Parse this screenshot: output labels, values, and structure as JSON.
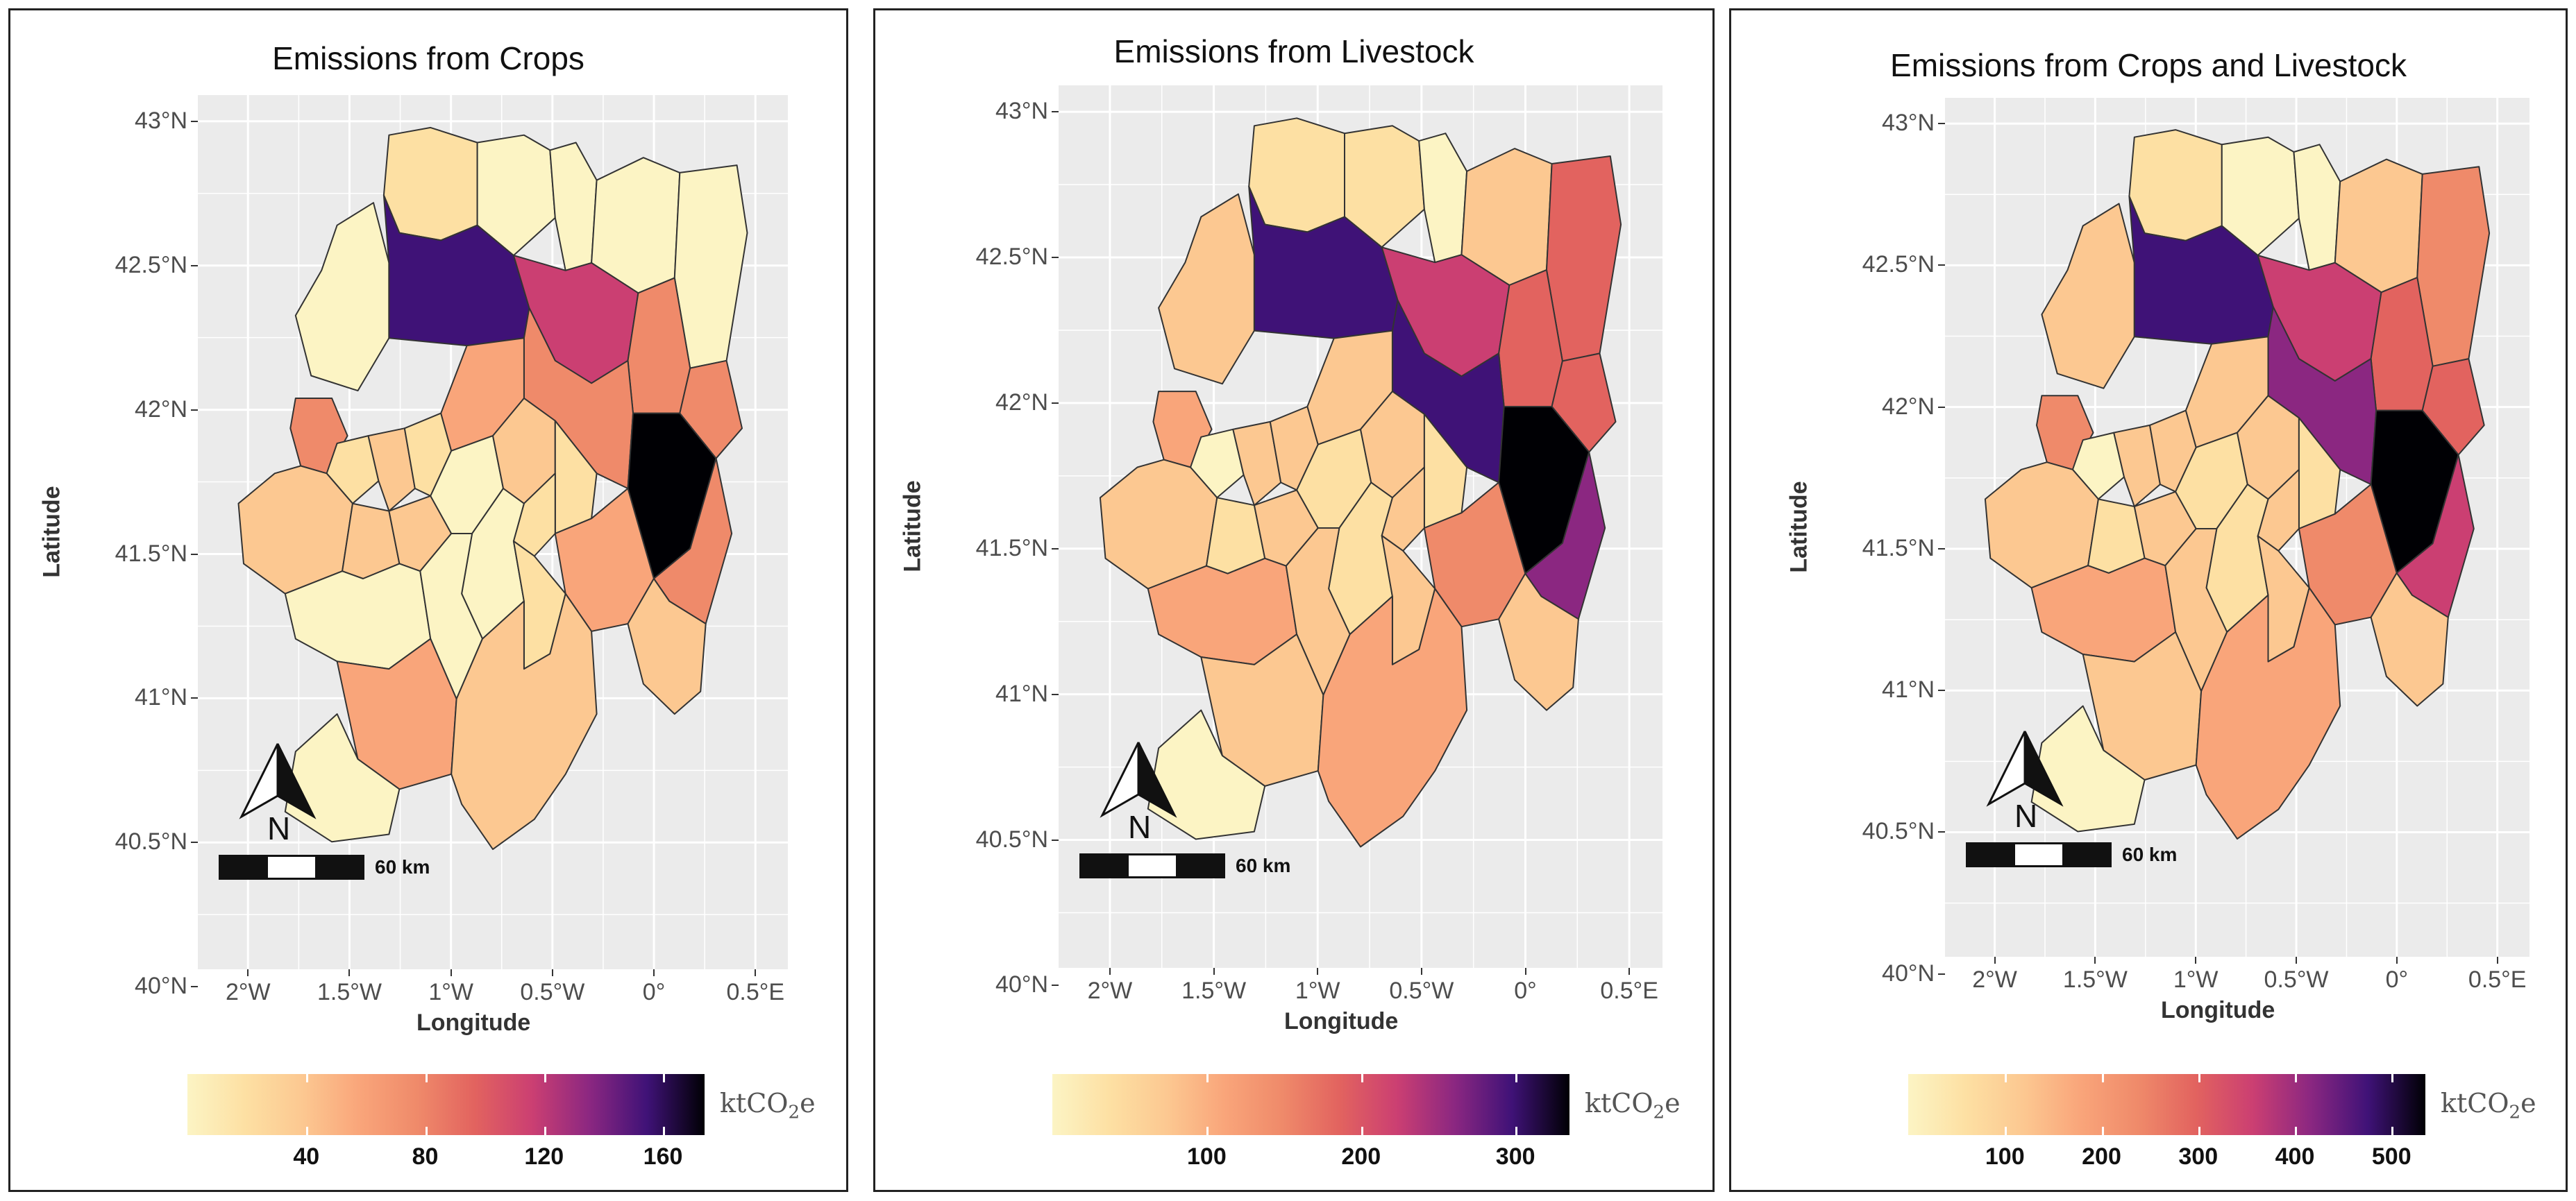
{
  "panels": [
    {
      "title": "Emissions from Crops",
      "y_axis_title": "Latitude",
      "x_axis_title": "Longitude",
      "y_ticks": [
        "43°N",
        "42.5°N",
        "42°N",
        "41.5°N",
        "41°N",
        "40.5°N",
        "40°N"
      ],
      "x_ticks": [
        "2°W",
        "1.5°W",
        "1°W",
        "0.5°W",
        "0°",
        "0.5°E"
      ],
      "north_label": "N",
      "scale_label": "60 km",
      "legend": {
        "unit": "ktCO",
        "unit_sub": "2",
        "unit_tail": "e",
        "ticks": [
          "40",
          "80",
          "120",
          "160"
        ]
      }
    },
    {
      "title": "Emissions from Livestock",
      "y_axis_title": "Latitude",
      "x_axis_title": "Longitude",
      "y_ticks": [
        "43°N",
        "42.5°N",
        "42°N",
        "41.5°N",
        "41°N",
        "40.5°N",
        "40°N"
      ],
      "x_ticks": [
        "2°W",
        "1.5°W",
        "1°W",
        "0.5°W",
        "0°",
        "0.5°E"
      ],
      "north_label": "N",
      "scale_label": "60 km",
      "legend": {
        "unit": "ktCO",
        "unit_sub": "2",
        "unit_tail": "e",
        "ticks": [
          "100",
          "200",
          "300"
        ]
      }
    },
    {
      "title": "Emissions from Crops and Livestock",
      "y_axis_title": "Latitude",
      "x_axis_title": "Longitude",
      "y_ticks": [
        "43°N",
        "42.5°N",
        "42°N",
        "41.5°N",
        "41°N",
        "40.5°N",
        "40°N"
      ],
      "x_ticks": [
        "2°W",
        "1.5°W",
        "1°W",
        "0.5°W",
        "0°",
        "0.5°E"
      ],
      "north_label": "N",
      "scale_label": "60 km",
      "legend": {
        "unit": "ktCO",
        "unit_sub": "2",
        "unit_tail": "e",
        "ticks": [
          "100",
          "200",
          "300",
          "400",
          "500"
        ]
      }
    }
  ],
  "colors": {
    "c1": "#fcf4c4",
    "c2": "#fde0a3",
    "c3": "#fcc891",
    "c4": "#f9a57a",
    "c5": "#ef8a6a",
    "c6": "#e2635f",
    "c7": "#cb3f72",
    "c8": "#8b2781",
    "c9": "#3f1277",
    "c10": "#000004",
    "background": "#ebebeb",
    "border": "#333333"
  },
  "region_classes": [
    [
      "c2",
      "c1",
      "c1",
      "c1",
      "c1",
      "c1",
      "c9",
      "c7",
      "c5",
      "c5",
      "c5",
      "c10",
      "c5",
      "c5",
      "c2",
      "c3",
      "c2",
      "c4",
      "c3",
      "c3",
      "c3",
      "c1",
      "c3",
      "c2",
      "c2",
      "c4",
      "c3",
      "c1",
      "c2",
      "c1",
      "c1",
      "c4",
      "c3",
      "c1"
    ],
    [
      "c2",
      "c2",
      "c1",
      "c3",
      "c6",
      "c3",
      "c9",
      "c7",
      "c6",
      "c6",
      "c9",
      "c10",
      "c8",
      "c4",
      "c1",
      "c3",
      "c3",
      "c3",
      "c3",
      "c2",
      "c3",
      "c2",
      "c3",
      "c2",
      "c3",
      "c5",
      "c3",
      "c2",
      "c3",
      "c4",
      "c3",
      "c3",
      "c4",
      "c1"
    ],
    [
      "c2",
      "c1",
      "c1",
      "c3",
      "c5",
      "c3",
      "c9",
      "c7",
      "c6",
      "c6",
      "c8",
      "c10",
      "c7",
      "c5",
      "c1",
      "c3",
      "c3",
      "c3",
      "c3",
      "c2",
      "c3",
      "c2",
      "c3",
      "c2",
      "c3",
      "c5",
      "c3",
      "c2",
      "c3",
      "c4",
      "c3",
      "c3",
      "c4",
      "c1"
    ]
  ]
}
